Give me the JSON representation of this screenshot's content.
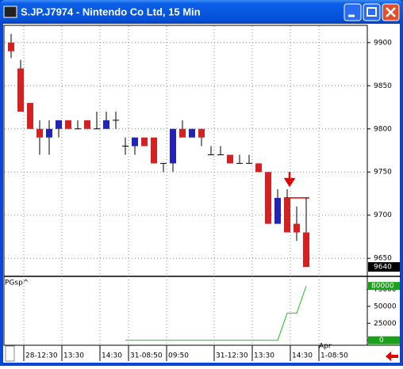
{
  "window": {
    "title": "S.JP.J7974 - Nintendo Co Ltd, 15 Min"
  },
  "chart_data": [
    {
      "type": "candlestick",
      "categories": [
        null,
        null,
        "28-12:30",
        null,
        null,
        null,
        "13:30",
        null,
        null,
        null,
        "14:30",
        null,
        null,
        "31-08:50",
        null,
        null,
        null,
        "09:50",
        null,
        null,
        null,
        null,
        "31-12:30",
        null,
        null,
        null,
        "13:30",
        null,
        null,
        null,
        "14:30",
        null,
        null,
        "1-08:50"
      ],
      "open": [
        9900,
        9870,
        9830,
        9800,
        9790,
        9800,
        9810,
        9800,
        9810,
        9800,
        9800,
        9810,
        9780,
        9780,
        9790,
        9790,
        9760,
        9760,
        9800,
        9790,
        9800,
        9770,
        9770,
        9770,
        9760,
        9760,
        9760,
        9750,
        9690,
        9720,
        9690,
        9680,
        null,
        null
      ],
      "high": [
        9910,
        9880,
        9830,
        9810,
        9810,
        9810,
        9810,
        9810,
        9810,
        9820,
        9820,
        9820,
        9790,
        9790,
        9790,
        9790,
        9760,
        9800,
        9810,
        9800,
        9800,
        9780,
        9780,
        9770,
        9770,
        9770,
        9760,
        9750,
        9730,
        9730,
        9710,
        9720,
        null,
        null
      ],
      "low": [
        9882,
        9820,
        9800,
        9770,
        9770,
        9790,
        9800,
        9800,
        9800,
        9800,
        9800,
        9800,
        9770,
        9770,
        9780,
        9760,
        9750,
        9750,
        9790,
        9790,
        9780,
        9770,
        9770,
        9760,
        9760,
        9760,
        9750,
        9690,
        9690,
        9680,
        9670,
        9640,
        null,
        null
      ],
      "close": [
        9890,
        9820,
        9800,
        9790,
        9800,
        9810,
        9800,
        9800,
        9800,
        9800,
        9810,
        9810,
        9780,
        9790,
        9780,
        9760,
        9760,
        9800,
        9790,
        9800,
        9790,
        9770,
        9770,
        9760,
        9760,
        9760,
        9750,
        9690,
        9720,
        9680,
        9680,
        9640,
        null,
        null
      ],
      "up_color": "#2323b4",
      "down_color": "#d42121",
      "ylim": [
        9630,
        9920
      ],
      "yticks": [
        9650,
        9700,
        9750,
        9800,
        9850,
        9900
      ],
      "grid": true,
      "reference_line": {
        "value": 9720,
        "color": "#e00000"
      },
      "x_annotation": "Apr"
    },
    {
      "type": "line",
      "series": [
        {
          "name": "PGsp^",
          "color": "#22c022",
          "values": [
            null,
            null,
            null,
            null,
            null,
            null,
            null,
            null,
            null,
            null,
            null,
            null,
            0,
            0,
            0,
            0,
            0,
            0,
            0,
            0,
            0,
            0,
            0,
            0,
            0,
            0,
            0,
            0,
            0,
            40000,
            40000,
            80000,
            null,
            null
          ]
        }
      ],
      "ylim": [
        -12000,
        93000
      ],
      "yticks": [
        0,
        25000,
        50000,
        75000
      ],
      "grid": true
    }
  ]
}
